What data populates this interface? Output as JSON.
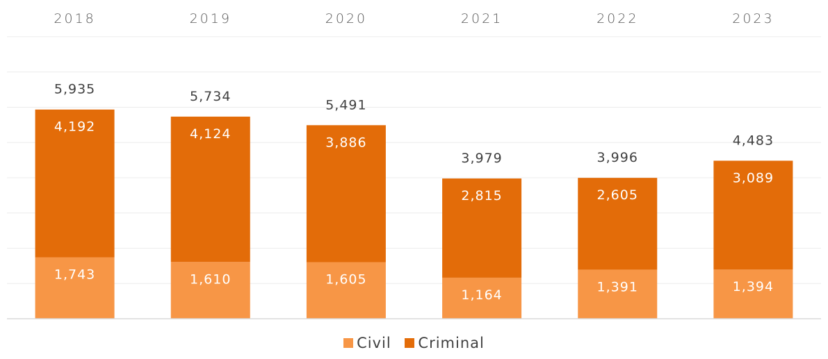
{
  "chart_data": {
    "type": "bar",
    "stacked": true,
    "categories": [
      "2018",
      "2019",
      "2020",
      "2021",
      "2022",
      "2023"
    ],
    "series": [
      {
        "name": "Civil",
        "color": "#F79646",
        "values": [
          1743,
          1610,
          1605,
          1164,
          1391,
          1394
        ]
      },
      {
        "name": "Criminal",
        "color": "#E36C09",
        "values": [
          4192,
          4124,
          3886,
          2815,
          2605,
          3089
        ]
      }
    ],
    "totals": [
      "5,935",
      "5,734",
      "5,491",
      "3,979",
      "3,996",
      "4,483"
    ],
    "segment_labels": [
      [
        "1,743",
        "1,610",
        "1,605",
        "1,164",
        "1,391",
        "1,394"
      ],
      [
        "4,192",
        "4,124",
        "3,886",
        "2,815",
        "2,605",
        "3,089"
      ]
    ],
    "ylim": [
      0,
      8000
    ],
    "grid": true,
    "legend_position": "bottom",
    "category_axis_position": "top"
  }
}
